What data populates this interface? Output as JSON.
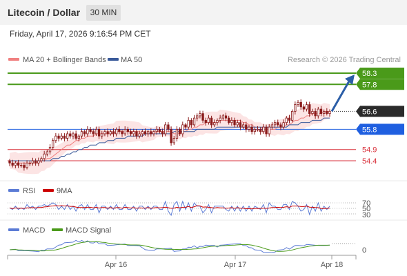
{
  "header": {
    "title": "Litecoin / Dollar",
    "timeframe": "30 MIN"
  },
  "datetime": "Friday, April 17, 2026 9:16:54 PM CET",
  "legend": {
    "ma20": {
      "label": "MA 20 + Bollinger Bands",
      "color": "#f08080"
    },
    "ma50": {
      "label": "MA 50",
      "color": "#3a5a9a"
    },
    "credit": "Research © 2026 Trading Central"
  },
  "levels": [
    {
      "value": 58.3,
      "label": "58.3",
      "style": "green-tag",
      "color": "#4a9a1a"
    },
    {
      "value": 57.8,
      "label": "57.8",
      "style": "green-tag",
      "color": "#4a9a1a"
    },
    {
      "value": 56.6,
      "label": "56.6",
      "style": "dark-tag",
      "color": "#2b2b2b"
    },
    {
      "value": 55.8,
      "label": "55.8",
      "style": "blue-tag",
      "color": "#1f5fe0"
    },
    {
      "value": 54.9,
      "label": "54.9",
      "style": "red-text",
      "color": "#d9323c"
    },
    {
      "value": 54.4,
      "label": "54.4",
      "style": "red-text",
      "color": "#d9323c"
    }
  ],
  "rsi_panel": {
    "rsi_label": "RSI",
    "rsi_color": "#5b7bd5",
    "ma_label": "9MA",
    "ma_color": "#cc0000",
    "levels": [
      "70",
      "50",
      "30"
    ]
  },
  "macd_panel": {
    "macd_label": "MACD",
    "macd_color": "#5b7bd5",
    "signal_label": "MACD Signal",
    "signal_color": "#4a9a1a",
    "zero_label": "0"
  },
  "x_axis": {
    "labels": [
      "Apr 16",
      "Apr 17",
      "Apr 18"
    ]
  },
  "chart_data": {
    "type": "candlestick",
    "instrument": "Litecoin / Dollar",
    "interval": "30 MIN",
    "ylim": [
      53.8,
      58.9
    ],
    "close": [
      54.3,
      54.2,
      54.3,
      54.2,
      54.2,
      54.1,
      54.3,
      54.3,
      54.4,
      54.3,
      54.4,
      54.5,
      54.7,
      54.8,
      55.0,
      55.3,
      55.5,
      55.4,
      55.5,
      55.4,
      55.6,
      55.5,
      55.6,
      55.4,
      55.5,
      55.7,
      55.6,
      55.8,
      55.7,
      55.6,
      55.8,
      55.5,
      55.6,
      55.7,
      55.6,
      55.7,
      55.6,
      55.8,
      55.7,
      55.6,
      55.8,
      55.7,
      55.6,
      55.7,
      55.5,
      55.6,
      55.7,
      55.6,
      55.7,
      55.6,
      55.7,
      55.8,
      55.7,
      55.6,
      56.0,
      55.8,
      55.2,
      55.4,
      55.8,
      55.6,
      56.0,
      55.9,
      56.2,
      56.0,
      56.3,
      56.4,
      56.5,
      56.2,
      56.1,
      56.3,
      56.0,
      56.1,
      56.2,
      56.3,
      56.4,
      56.3,
      56.1,
      56.2,
      56.0,
      56.1,
      55.9,
      56.0,
      55.8,
      55.9,
      55.7,
      55.8,
      55.8,
      55.7,
      55.9,
      55.6,
      55.9,
      56.0,
      56.1,
      56.0,
      55.9,
      56.1,
      56.3,
      56.2,
      56.6,
      56.9,
      57.0,
      56.8,
      56.7,
      56.9,
      56.5,
      56.6,
      56.4,
      56.7,
      56.5,
      56.6,
      56.5,
      56.6
    ],
    "open": [
      54.4,
      54.3,
      54.2,
      54.3,
      54.2,
      54.2,
      54.1,
      54.3,
      54.3,
      54.4,
      54.3,
      54.4,
      54.5,
      54.7,
      54.8,
      55.0,
      55.3,
      55.5,
      55.4,
      55.5,
      55.4,
      55.6,
      55.5,
      55.6,
      55.4,
      55.5,
      55.7,
      55.6,
      55.8,
      55.7,
      55.6,
      55.8,
      55.5,
      55.6,
      55.7,
      55.6,
      55.7,
      55.6,
      55.8,
      55.7,
      55.6,
      55.8,
      55.7,
      55.6,
      55.7,
      55.5,
      55.6,
      55.7,
      55.6,
      55.7,
      55.6,
      55.7,
      55.8,
      55.7,
      55.6,
      56.0,
      55.8,
      55.2,
      55.4,
      55.8,
      55.6,
      56.0,
      55.9,
      56.2,
      56.0,
      56.3,
      56.4,
      56.5,
      56.2,
      56.1,
      56.3,
      56.0,
      56.1,
      56.2,
      56.3,
      56.4,
      56.3,
      56.1,
      56.2,
      56.0,
      56.1,
      55.9,
      56.0,
      55.8,
      55.9,
      55.7,
      55.8,
      55.8,
      55.7,
      55.9,
      55.6,
      55.9,
      56.0,
      56.1,
      56.0,
      55.9,
      56.1,
      56.3,
      56.2,
      56.6,
      56.9,
      57.0,
      56.8,
      56.7,
      56.9,
      56.5,
      56.6,
      56.4,
      56.7,
      56.5,
      56.6,
      56.5
    ],
    "ma20": [
      54.4,
      54.4,
      54.4,
      54.3,
      54.3,
      54.3,
      54.3,
      54.3,
      54.3,
      54.3,
      54.3,
      54.4,
      54.4,
      54.5,
      54.5,
      54.6,
      54.7,
      54.8,
      54.9,
      55.0,
      55.1,
      55.1,
      55.2,
      55.3,
      55.3,
      55.4,
      55.4,
      55.5,
      55.5,
      55.5,
      55.6,
      55.6,
      55.6,
      55.6,
      55.6,
      55.6,
      55.6,
      55.7,
      55.7,
      55.7,
      55.7,
      55.7,
      55.7,
      55.7,
      55.7,
      55.7,
      55.6,
      55.6,
      55.6,
      55.6,
      55.6,
      55.7,
      55.7,
      55.7,
      55.7,
      55.7,
      55.7,
      55.6,
      55.6,
      55.6,
      55.7,
      55.7,
      55.8,
      55.8,
      55.9,
      55.9,
      56.0,
      56.0,
      56.1,
      56.1,
      56.1,
      56.1,
      56.1,
      56.2,
      56.2,
      56.2,
      56.2,
      56.2,
      56.2,
      56.2,
      56.2,
      56.1,
      56.1,
      56.0,
      56.0,
      55.9,
      55.9,
      55.9,
      55.8,
      55.8,
      55.8,
      55.8,
      55.8,
      55.9,
      55.9,
      55.9,
      56.0,
      56.0,
      56.1,
      56.2,
      56.2,
      56.3,
      56.3,
      56.4,
      56.4,
      56.5,
      56.5,
      56.5,
      56.5,
      56.6,
      56.6,
      56.6
    ],
    "ma50": [
      54.4,
      54.4,
      54.4,
      54.4,
      54.4,
      54.4,
      54.4,
      54.4,
      54.4,
      54.4,
      54.4,
      54.4,
      54.4,
      54.4,
      54.4,
      54.5,
      54.5,
      54.5,
      54.6,
      54.6,
      54.7,
      54.7,
      54.8,
      54.8,
      54.9,
      54.9,
      55.0,
      55.0,
      55.1,
      55.1,
      55.1,
      55.2,
      55.2,
      55.2,
      55.3,
      55.3,
      55.3,
      55.4,
      55.4,
      55.4,
      55.4,
      55.5,
      55.5,
      55.5,
      55.5,
      55.5,
      55.5,
      55.6,
      55.6,
      55.6,
      55.6,
      55.6,
      55.6,
      55.6,
      55.6,
      55.6,
      55.6,
      55.7,
      55.7,
      55.7,
      55.7,
      55.7,
      55.7,
      55.7,
      55.7,
      55.8,
      55.8,
      55.8,
      55.8,
      55.8,
      55.8,
      55.8,
      55.9,
      55.9,
      55.9,
      55.9,
      55.9,
      55.9,
      55.9,
      55.9,
      55.9,
      55.9,
      55.9,
      55.9,
      55.9,
      55.9,
      55.9,
      55.9,
      55.9,
      55.9,
      55.9,
      55.9,
      55.9,
      55.9,
      55.9,
      55.9,
      55.9,
      56.0,
      56.0,
      56.0,
      56.0,
      56.1,
      56.1,
      56.1,
      56.1,
      56.2,
      56.2,
      56.2,
      56.2,
      56.3,
      56.3,
      56.3
    ],
    "bb_width": 0.35
  }
}
